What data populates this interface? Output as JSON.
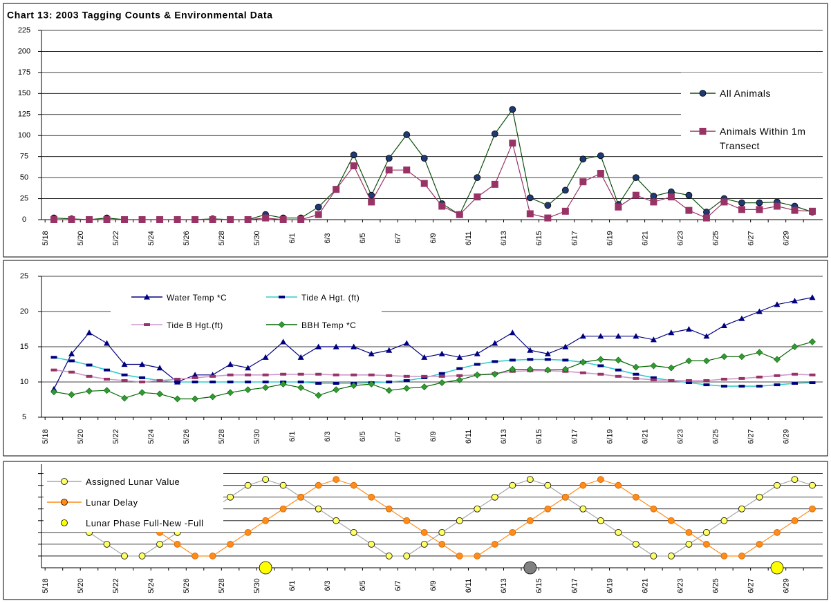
{
  "chart_data": [
    {
      "type": "line",
      "title": "Chart 13:  2003 Tagging Counts & Environmental Data",
      "categories": [
        "5/18",
        null,
        "5/20",
        null,
        "5/22",
        null,
        "5/24",
        null,
        "5/26",
        null,
        "5/28",
        null,
        "5/30",
        null,
        "6/1",
        null,
        "6/3",
        null,
        "6/5",
        null,
        "6/7",
        null,
        "6/9",
        null,
        "6/11",
        null,
        "6/13",
        null,
        "6/15",
        null,
        "6/17",
        null,
        "6/19",
        null,
        "6/21",
        null,
        "6/23",
        null,
        "6/25",
        null,
        "6/27",
        null,
        "6/29",
        null
      ],
      "series": [
        {
          "name": "All Animals",
          "color": "#0b4d0b",
          "marker_color": "#1f3a73",
          "marker": "circle",
          "values": [
            2,
            1,
            0,
            2,
            0,
            0,
            0,
            0,
            0,
            1,
            0,
            0,
            6,
            2,
            2,
            15,
            36,
            77,
            29,
            73,
            101,
            73,
            19,
            6,
            50,
            102,
            131,
            26,
            17,
            35,
            72,
            76,
            18,
            50,
            28,
            33,
            29,
            9,
            25,
            20,
            20,
            21,
            16,
            9
          ]
        },
        {
          "name": "Animals Within 1m Transect",
          "color": "#993366",
          "marker_color": "#993366",
          "marker": "square",
          "values": [
            0,
            0,
            0,
            0,
            0,
            0,
            0,
            0,
            0,
            0,
            0,
            0,
            2,
            0,
            0,
            6,
            36,
            64,
            21,
            59,
            59,
            43,
            16,
            6,
            27,
            42,
            91,
            7,
            2,
            10,
            45,
            55,
            15,
            29,
            21,
            27,
            11,
            2,
            21,
            12,
            12,
            16,
            11,
            10
          ]
        }
      ],
      "ylim": [
        0,
        225
      ],
      "yticks": [
        0,
        25,
        50,
        75,
        100,
        125,
        150,
        175,
        200,
        225
      ],
      "grid": true
    },
    {
      "type": "line",
      "categories": [
        "5/18",
        null,
        "5/20",
        null,
        "5/22",
        null,
        "5/24",
        null,
        "5/26",
        null,
        "5/28",
        null,
        "5/30",
        null,
        "6/1",
        null,
        "6/3",
        null,
        "6/5",
        null,
        "6/7",
        null,
        "6/9",
        null,
        "6/11",
        null,
        "6/13",
        null,
        "6/15",
        null,
        "6/17",
        null,
        "6/19",
        null,
        "6/21",
        null,
        "6/23",
        null,
        "6/25",
        null,
        "6/27",
        null,
        "6/29",
        null
      ],
      "series": [
        {
          "name": "Water Temp *C",
          "color": "#000080",
          "marker_color": "#000080",
          "marker": "triangle",
          "values": [
            9,
            14,
            17,
            15.5,
            12.5,
            12.5,
            12,
            10,
            11,
            11,
            12.5,
            12,
            13.5,
            15.7,
            13.5,
            15,
            15,
            15,
            14,
            14.5,
            15.5,
            13.5,
            14,
            13.5,
            14,
            15.5,
            17,
            14.5,
            14,
            15,
            16.5,
            16.5,
            16.5,
            16.5,
            16,
            17,
            17.5,
            16.5,
            18,
            19,
            20,
            21,
            21.5,
            22
          ]
        },
        {
          "name": "Tide A Hgt. (ft)",
          "color": "#33cccc",
          "marker_color": "#000080",
          "marker": "dash",
          "values": [
            13.5,
            13,
            12.4,
            11.7,
            11,
            10.6,
            10.2,
            10,
            10,
            10,
            10,
            10,
            10,
            10,
            10,
            9.8,
            9.8,
            9.8,
            9.9,
            10,
            10.2,
            10.6,
            11.2,
            11.9,
            12.5,
            12.9,
            13.1,
            13.2,
            13.2,
            13.1,
            12.8,
            12.3,
            11.7,
            11.1,
            10.6,
            10.2,
            9.9,
            9.6,
            9.4,
            9.4,
            9.4,
            9.6,
            9.8,
            9.9
          ]
        },
        {
          "name": "Tide B Hgt.(ft)",
          "color": "#cc99cc",
          "marker_color": "#993366",
          "marker": "dash",
          "values": [
            11.7,
            11.4,
            10.8,
            10.4,
            10.2,
            10,
            10.2,
            10.4,
            10.6,
            10.8,
            11,
            11,
            11,
            11.1,
            11.1,
            11.1,
            11,
            11,
            11,
            10.9,
            10.8,
            10.8,
            10.8,
            10.9,
            11,
            11.2,
            11.5,
            11.6,
            11.6,
            11.5,
            11.3,
            11.1,
            10.8,
            10.5,
            10.3,
            10.2,
            10.2,
            10.2,
            10.4,
            10.5,
            10.7,
            10.9,
            11.1,
            11
          ]
        },
        {
          "name": "BBH Temp *C",
          "color": "#006600",
          "marker_color": "#339933",
          "marker": "diamond",
          "values": [
            8.6,
            8.2,
            8.7,
            8.8,
            7.7,
            8.5,
            8.3,
            7.6,
            7.6,
            7.9,
            8.5,
            8.9,
            9.2,
            9.7,
            9.2,
            8.1,
            8.9,
            9.5,
            9.7,
            8.8,
            9.1,
            9.3,
            9.9,
            10.3,
            11,
            11.1,
            11.8,
            11.8,
            11.7,
            11.8,
            12.8,
            13.2,
            13.1,
            12.1,
            12.3,
            12,
            13,
            13,
            13.6,
            13.6,
            14.2,
            13.2,
            15,
            15.7
          ]
        }
      ],
      "ylim": [
        5,
        25
      ],
      "yticks": [
        5,
        10,
        15,
        20,
        25
      ],
      "grid": true
    },
    {
      "type": "line",
      "categories": [
        "5/18",
        null,
        "5/20",
        null,
        "5/22",
        null,
        "5/24",
        null,
        "5/26",
        null,
        "5/28",
        null,
        "5/30",
        null,
        "6/1",
        null,
        "6/3",
        null,
        "6/5",
        null,
        "6/7",
        null,
        "6/9",
        null,
        "6/11",
        null,
        "6/13",
        null,
        "6/15",
        null,
        "6/17",
        null,
        "6/19",
        null,
        "6/21",
        null,
        "6/23",
        null,
        "6/25",
        null,
        "6/27",
        null,
        "6/29",
        null
      ],
      "series": [
        {
          "name": "Assigned Lunar Value",
          "color": "#a6a6a6",
          "marker_color": "#ffff66",
          "marker": "circle",
          "values": [
            5,
            4,
            3,
            2,
            1,
            1,
            2,
            3,
            4,
            5,
            6,
            7,
            7.5,
            7,
            6,
            5,
            4,
            3,
            2,
            1,
            1,
            2,
            3,
            4,
            5,
            6,
            7,
            7.5,
            7,
            6,
            5,
            4,
            3,
            2,
            1,
            1,
            2,
            3,
            4,
            5,
            6,
            7,
            7.5,
            7
          ]
        },
        {
          "name": "Lunar Delay",
          "color": "#ff8c1a",
          "marker_color": "#ff8c1a",
          "marker": "circle",
          "values": [
            7,
            7.5,
            7,
            6,
            5,
            4,
            3,
            2,
            1,
            1,
            2,
            3,
            4,
            5,
            6,
            7,
            7.5,
            7,
            6,
            5,
            4,
            3,
            2,
            1,
            1,
            2,
            3,
            4,
            5,
            6,
            7,
            7.5,
            7,
            6,
            5,
            4,
            3,
            2,
            1,
            1,
            2,
            3,
            4,
            5
          ]
        },
        {
          "name": "Lunar Phase Full-New -Full",
          "color": "#ffff00",
          "marker": "big-circle",
          "line": false,
          "point_colors": [
            null,
            null,
            null,
            null,
            null,
            null,
            null,
            null,
            null,
            null,
            null,
            null,
            "#ffff00",
            null,
            null,
            null,
            null,
            null,
            null,
            null,
            null,
            null,
            null,
            null,
            null,
            null,
            null,
            "#808080",
            null,
            null,
            null,
            null,
            null,
            null,
            null,
            null,
            null,
            null,
            null,
            null,
            null,
            "#ffff00",
            null,
            null
          ],
          "values": [
            null,
            null,
            null,
            null,
            null,
            null,
            null,
            null,
            null,
            null,
            null,
            null,
            0,
            null,
            null,
            null,
            null,
            null,
            null,
            null,
            null,
            null,
            null,
            null,
            null,
            null,
            null,
            0,
            null,
            null,
            null,
            null,
            null,
            null,
            null,
            null,
            null,
            null,
            null,
            null,
            null,
            0,
            null,
            null
          ]
        }
      ],
      "ylim": [
        0,
        8.8
      ],
      "yticks": [
        1,
        2,
        3,
        4,
        5,
        6,
        7,
        8
      ],
      "grid": true
    }
  ]
}
